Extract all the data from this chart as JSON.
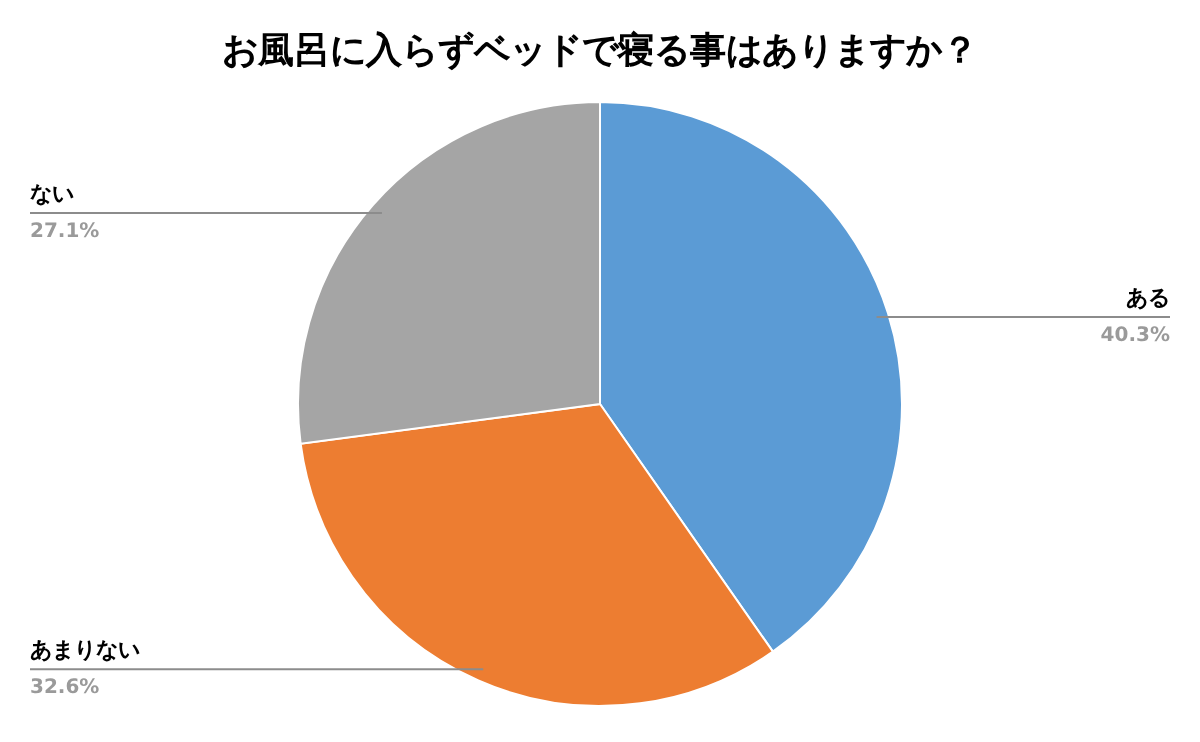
{
  "chart_data": {
    "type": "pie",
    "title": "お風呂に入らずベッドで寝る事はありますか？",
    "categories": [
      "ある",
      "あまりない",
      "ない"
    ],
    "values": [
      40.3,
      32.6,
      27.1
    ],
    "colors": [
      "#5b9bd5",
      "#ed7d31",
      "#a5a5a5"
    ],
    "value_labels": [
      "40.3%",
      "32.6%",
      "27.1%"
    ]
  }
}
